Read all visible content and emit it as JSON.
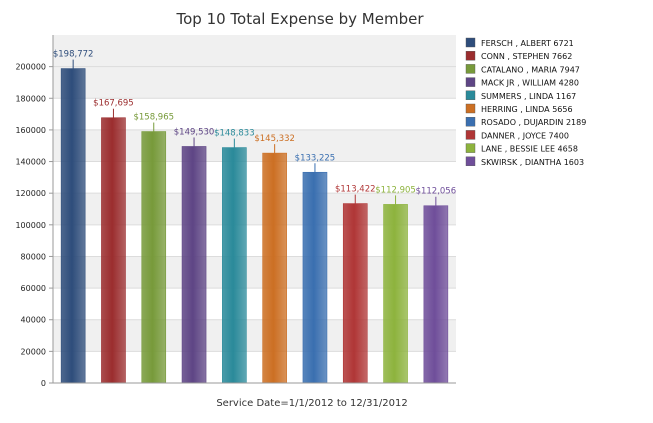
{
  "chart_data": {
    "type": "bar",
    "title": "Top 10 Total Expense by Member",
    "xlabel": "Service Date=1/1/2012 to 12/31/2012",
    "ylabel": "",
    "ylim": [
      0,
      220000
    ],
    "yticks": [
      0,
      20000,
      40000,
      60000,
      80000,
      100000,
      120000,
      140000,
      160000,
      180000,
      200000
    ],
    "ytick_labels": [
      "0",
      "20000",
      "40000",
      "60000",
      "80000",
      "100000",
      "120000",
      "140000",
      "160000",
      "180000",
      "200000"
    ],
    "grid": true,
    "legend_position": "right",
    "categories": [
      "FERSCH , ALBERT  6721",
      "CONN , STEPHEN  7662",
      "CATALANO , MARIA  7947",
      "MACK JR , WILLIAM  4280",
      "SUMMERS , LINDA  1167",
      "HERRING , LINDA  5656",
      "ROSADO , DUJARDIN  2189",
      "DANNER , JOYCE  7400",
      "LANE , BESSIE LEE  4658",
      "SKWIRSK , DIANTHA  1603"
    ],
    "values": [
      198772,
      167695,
      158965,
      149530,
      148833,
      145332,
      133225,
      113422,
      112905,
      112056
    ],
    "value_labels": [
      "$198,772",
      "$167,695",
      "$158,965",
      "$149,530",
      "$148,833",
      "$145,332",
      "$133,225",
      "$113,422",
      "$112,905",
      "$112,056"
    ],
    "colors": [
      "#2E4D7B",
      "#9B2D2E",
      "#779A3A",
      "#5E4585",
      "#2A8A9A",
      "#CC6F23",
      "#3A6FB0",
      "#B03636",
      "#8DB33D",
      "#6F4E9A"
    ]
  }
}
